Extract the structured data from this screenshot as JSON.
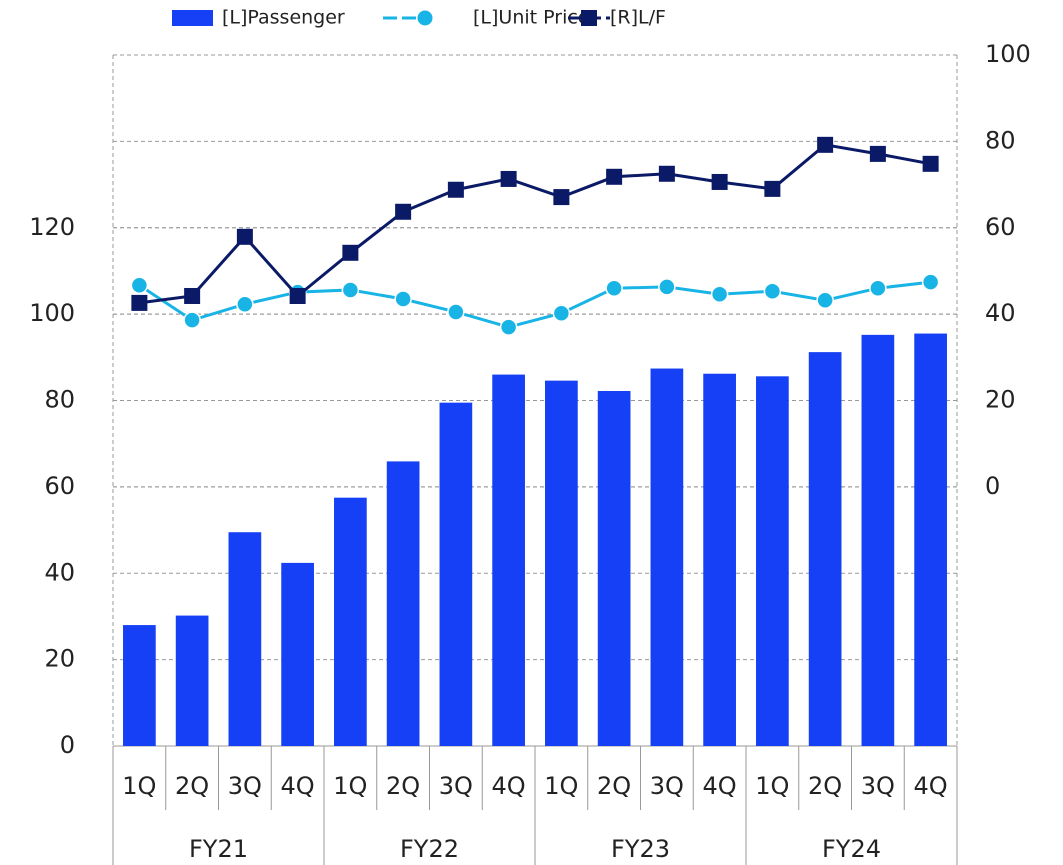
{
  "chart_data": {
    "type": "bar",
    "categories": [
      "1Q",
      "2Q",
      "3Q",
      "4Q",
      "1Q",
      "2Q",
      "3Q",
      "4Q",
      "1Q",
      "2Q",
      "3Q",
      "4Q",
      "1Q",
      "2Q",
      "3Q",
      "4Q"
    ],
    "category_groups": [
      "FY21",
      "FY22",
      "FY23",
      "FY24"
    ],
    "series": [
      {
        "name": "[L]Passenger",
        "type": "bar",
        "axis": "y",
        "color": "#1540f5",
        "values": [
          28,
          30.2,
          49.5,
          42.4,
          57.5,
          65.9,
          79.5,
          86,
          84.6,
          82.2,
          87.4,
          86.2,
          85.6,
          91.2,
          95.2,
          95.5
        ]
      },
      {
        "name": "[L]Unit Price",
        "type": "line",
        "marker": "circle",
        "axis": "y",
        "color": "#19b4e6",
        "values": [
          106.7,
          98.6,
          102.3,
          105.1,
          105.6,
          103.5,
          100.5,
          97,
          100.2,
          106,
          106.3,
          104.6,
          105.3,
          103.2,
          106,
          107.4
        ]
      },
      {
        "name": "[R]L/F",
        "type": "line",
        "marker": "square",
        "axis": "y2",
        "color": "#0b1a66",
        "values": [
          42.6,
          44.2,
          57.9,
          44.2,
          54.2,
          63.7,
          68.8,
          71.3,
          67.1,
          71.8,
          72.5,
          70.6,
          69,
          79.2,
          77.1,
          74.8
        ]
      }
    ],
    "ylim": [
      0,
      160
    ],
    "yticks": [
      0,
      20,
      40,
      60,
      80,
      100,
      120
    ],
    "y2lim": [
      -60,
      100
    ],
    "y2ticks": [
      0,
      20,
      40,
      60,
      80,
      100
    ],
    "grid": true
  }
}
